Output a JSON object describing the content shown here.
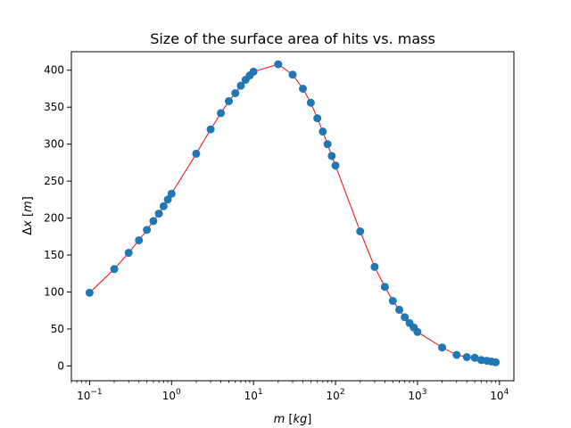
{
  "chart_data": {
    "type": "scatter",
    "title": "Size of the surface area of hits vs. mass",
    "xlabel": "m [kg]",
    "ylabel": "Δx [m]",
    "xscale": "log",
    "xlim": [
      0.06,
      15000
    ],
    "ylim": [
      -20,
      425
    ],
    "grid": false,
    "x_tick_labels": [
      "10−1",
      "100",
      "101",
      "102",
      "103",
      "104"
    ],
    "y_tick_labels": [
      "0",
      "50",
      "100",
      "150",
      "200",
      "250",
      "300",
      "350",
      "400"
    ],
    "marker_color": "#1f77b4",
    "line_color": "#e8201d",
    "series": [
      {
        "x": [
          0.1,
          0.2,
          0.3,
          0.4,
          0.5,
          0.6,
          0.7,
          0.8,
          0.9,
          1,
          2,
          3,
          4,
          5,
          6,
          7,
          8,
          9,
          10,
          20,
          30,
          40,
          50,
          60,
          70,
          80,
          90,
          100,
          200,
          300,
          400,
          500,
          600,
          700,
          800,
          900,
          1000,
          2000,
          3000,
          4000,
          5000,
          6000,
          7000,
          8000,
          9000
        ],
        "y": [
          99,
          131,
          153,
          170,
          184,
          196,
          206,
          216,
          225,
          233,
          287,
          320,
          342,
          358,
          369,
          379,
          387,
          393,
          398,
          408,
          394,
          375,
          356,
          335,
          317,
          300,
          284,
          271,
          182,
          134,
          107,
          88,
          76,
          66,
          58,
          52,
          46,
          25,
          15,
          12,
          11,
          8,
          7,
          6,
          5
        ]
      }
    ]
  }
}
